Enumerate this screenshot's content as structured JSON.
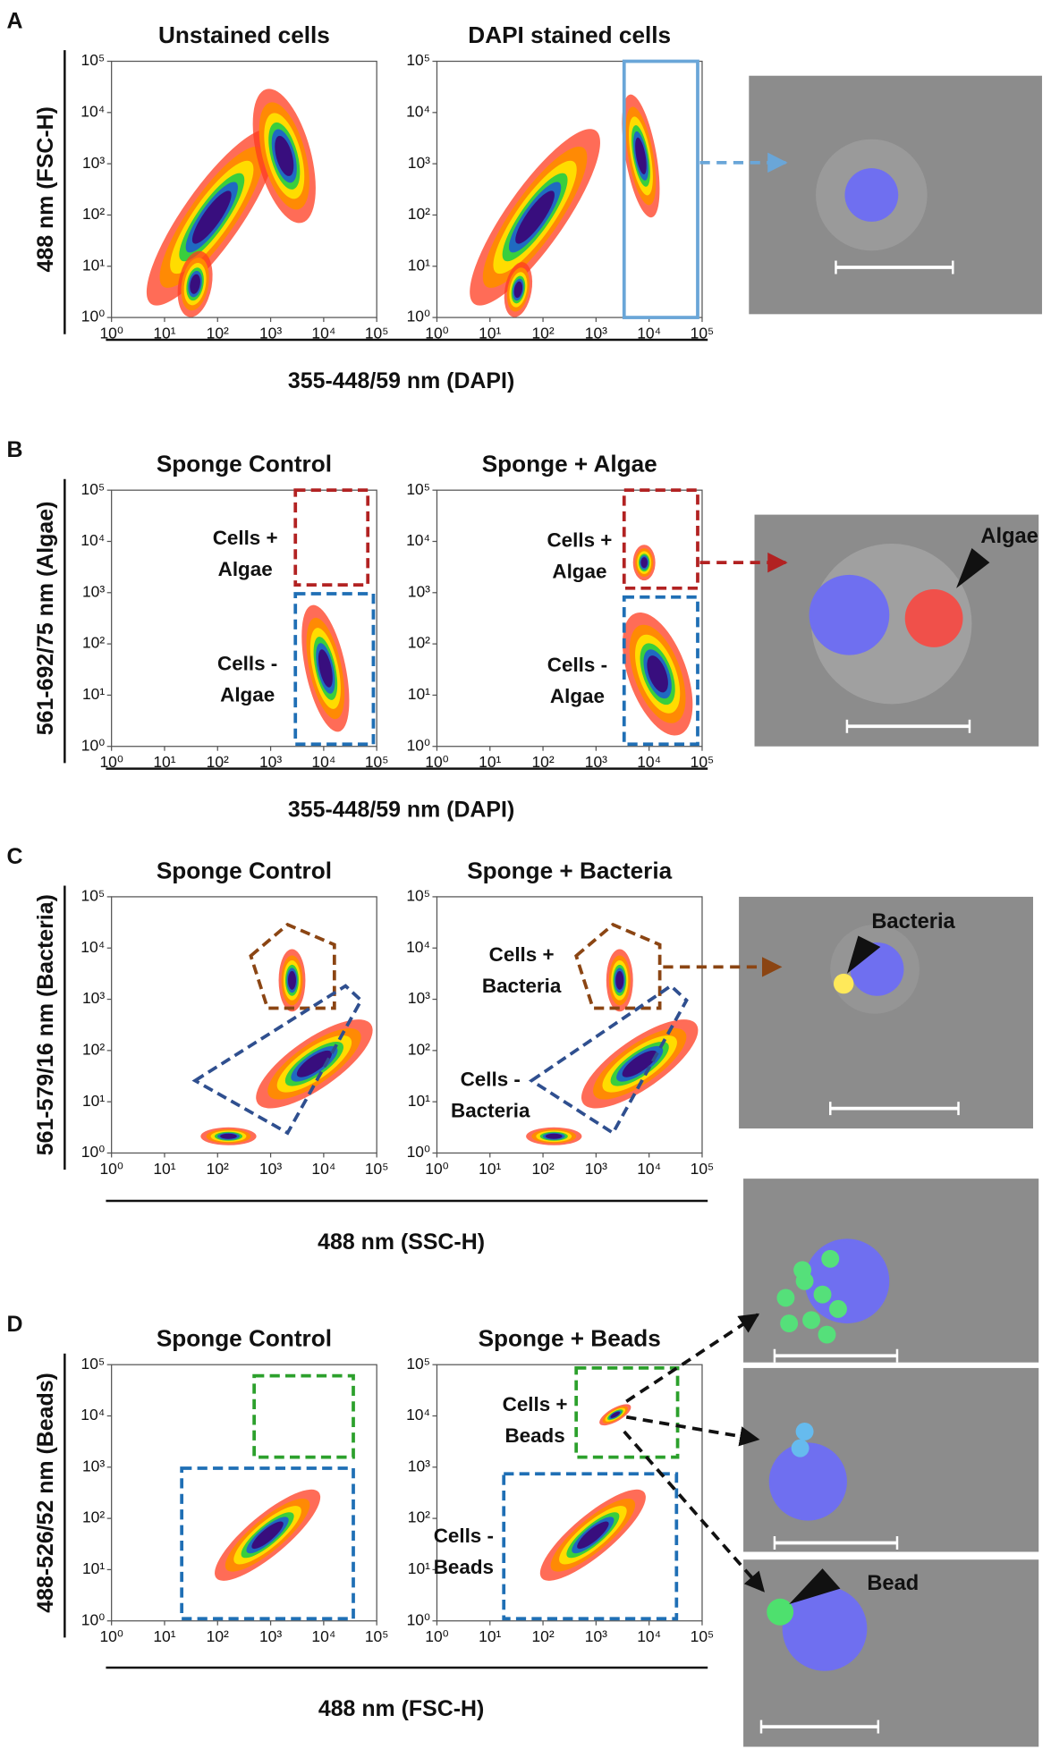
{
  "ticks": [
    "10⁰",
    "10¹",
    "10²",
    "10³",
    "10⁴",
    "10⁵"
  ],
  "panels": [
    {
      "letter": "A",
      "y_label": "488 nm (FSC-H)",
      "x_label": "355-448/59 nm (DAPI)",
      "plots": [
        {
          "title": "Unstained cells",
          "gates": []
        },
        {
          "title": "DAPI stained cells",
          "gates": []
        }
      ],
      "image_labels": []
    },
    {
      "letter": "B",
      "y_label": "561-692/75 nm (Algae)",
      "x_label": "355-448/59 nm (DAPI)",
      "plots": [
        {
          "title": "Sponge Control",
          "gates": [
            {
              "label": [
                "Cells +",
                "Algae"
              ]
            },
            {
              "label": [
                "Cells -",
                "Algae"
              ]
            }
          ]
        },
        {
          "title": "Sponge + Algae",
          "gates": [
            {
              "label": [
                "Cells +",
                "Algae"
              ]
            },
            {
              "label": [
                "Cells -",
                "Algae"
              ]
            }
          ]
        }
      ],
      "image_labels": [
        "Algae"
      ]
    },
    {
      "letter": "C",
      "y_label": "561-579/16 nm (Bacteria)",
      "x_label": "488 nm (SSC-H)",
      "plots": [
        {
          "title": "Sponge Control",
          "gates": []
        },
        {
          "title": "Sponge + Bacteria",
          "gates": [
            {
              "label": [
                "Cells +",
                "Bacteria"
              ]
            },
            {
              "label": [
                "Cells -",
                "Bacteria"
              ]
            }
          ]
        }
      ],
      "image_labels": [
        "Bacteria"
      ]
    },
    {
      "letter": "D",
      "y_label": "488-526/52 nm (Beads)",
      "x_label": "488 nm (FSC-H)",
      "plots": [
        {
          "title": "Sponge Control",
          "gates": []
        },
        {
          "title": "Sponge + Beads",
          "gates": [
            {
              "label": [
                "Cells +",
                "Beads"
              ]
            },
            {
              "label": [
                "Cells -",
                "Beads"
              ]
            }
          ]
        }
      ],
      "image_labels": [
        "Bead"
      ]
    }
  ]
}
